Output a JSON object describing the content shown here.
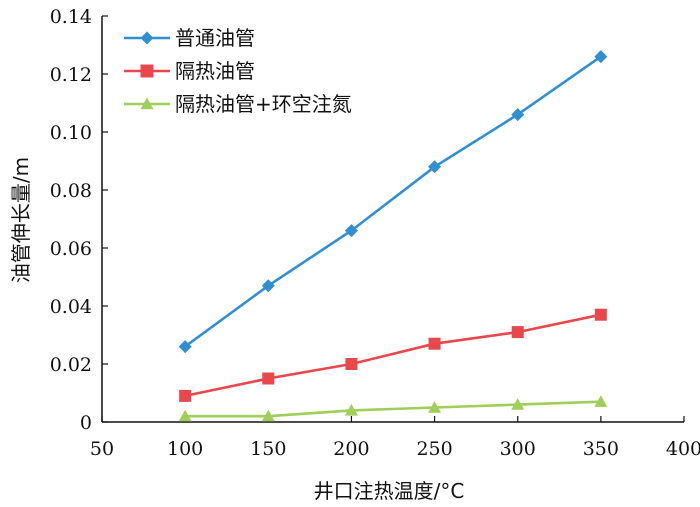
{
  "chart_data": {
    "type": "line",
    "xlabel": "井口注热温度/°C",
    "ylabel": "油管伸长量/m",
    "xlim": [
      50,
      400
    ],
    "ylim": [
      0,
      0.14
    ],
    "xticks": [
      "50",
      "100",
      "150",
      "200",
      "250",
      "300",
      "350",
      "400"
    ],
    "yticks": [
      "0",
      "0.02",
      "0.04",
      "0.06",
      "0.08",
      "0.10",
      "0.12",
      "0.14"
    ],
    "grid": false,
    "legend_position": "top-left",
    "series": [
      {
        "name": "普通油管",
        "color": "#2f8fd0",
        "marker": "diamond",
        "x": [
          100,
          150,
          200,
          250,
          300,
          350
        ],
        "y": [
          0.026,
          0.047,
          0.066,
          0.088,
          0.106,
          0.126
        ]
      },
      {
        "name": "隔热油管",
        "color": "#e8474c",
        "marker": "square",
        "x": [
          100,
          150,
          200,
          250,
          300,
          350
        ],
        "y": [
          0.009,
          0.015,
          0.02,
          0.027,
          0.031,
          0.037
        ]
      },
      {
        "name": "隔热油管+环空注氮",
        "color": "#9fcf5a",
        "marker": "triangle",
        "x": [
          100,
          150,
          200,
          250,
          300,
          350
        ],
        "y": [
          0.002,
          0.002,
          0.004,
          0.005,
          0.006,
          0.007
        ]
      }
    ]
  }
}
